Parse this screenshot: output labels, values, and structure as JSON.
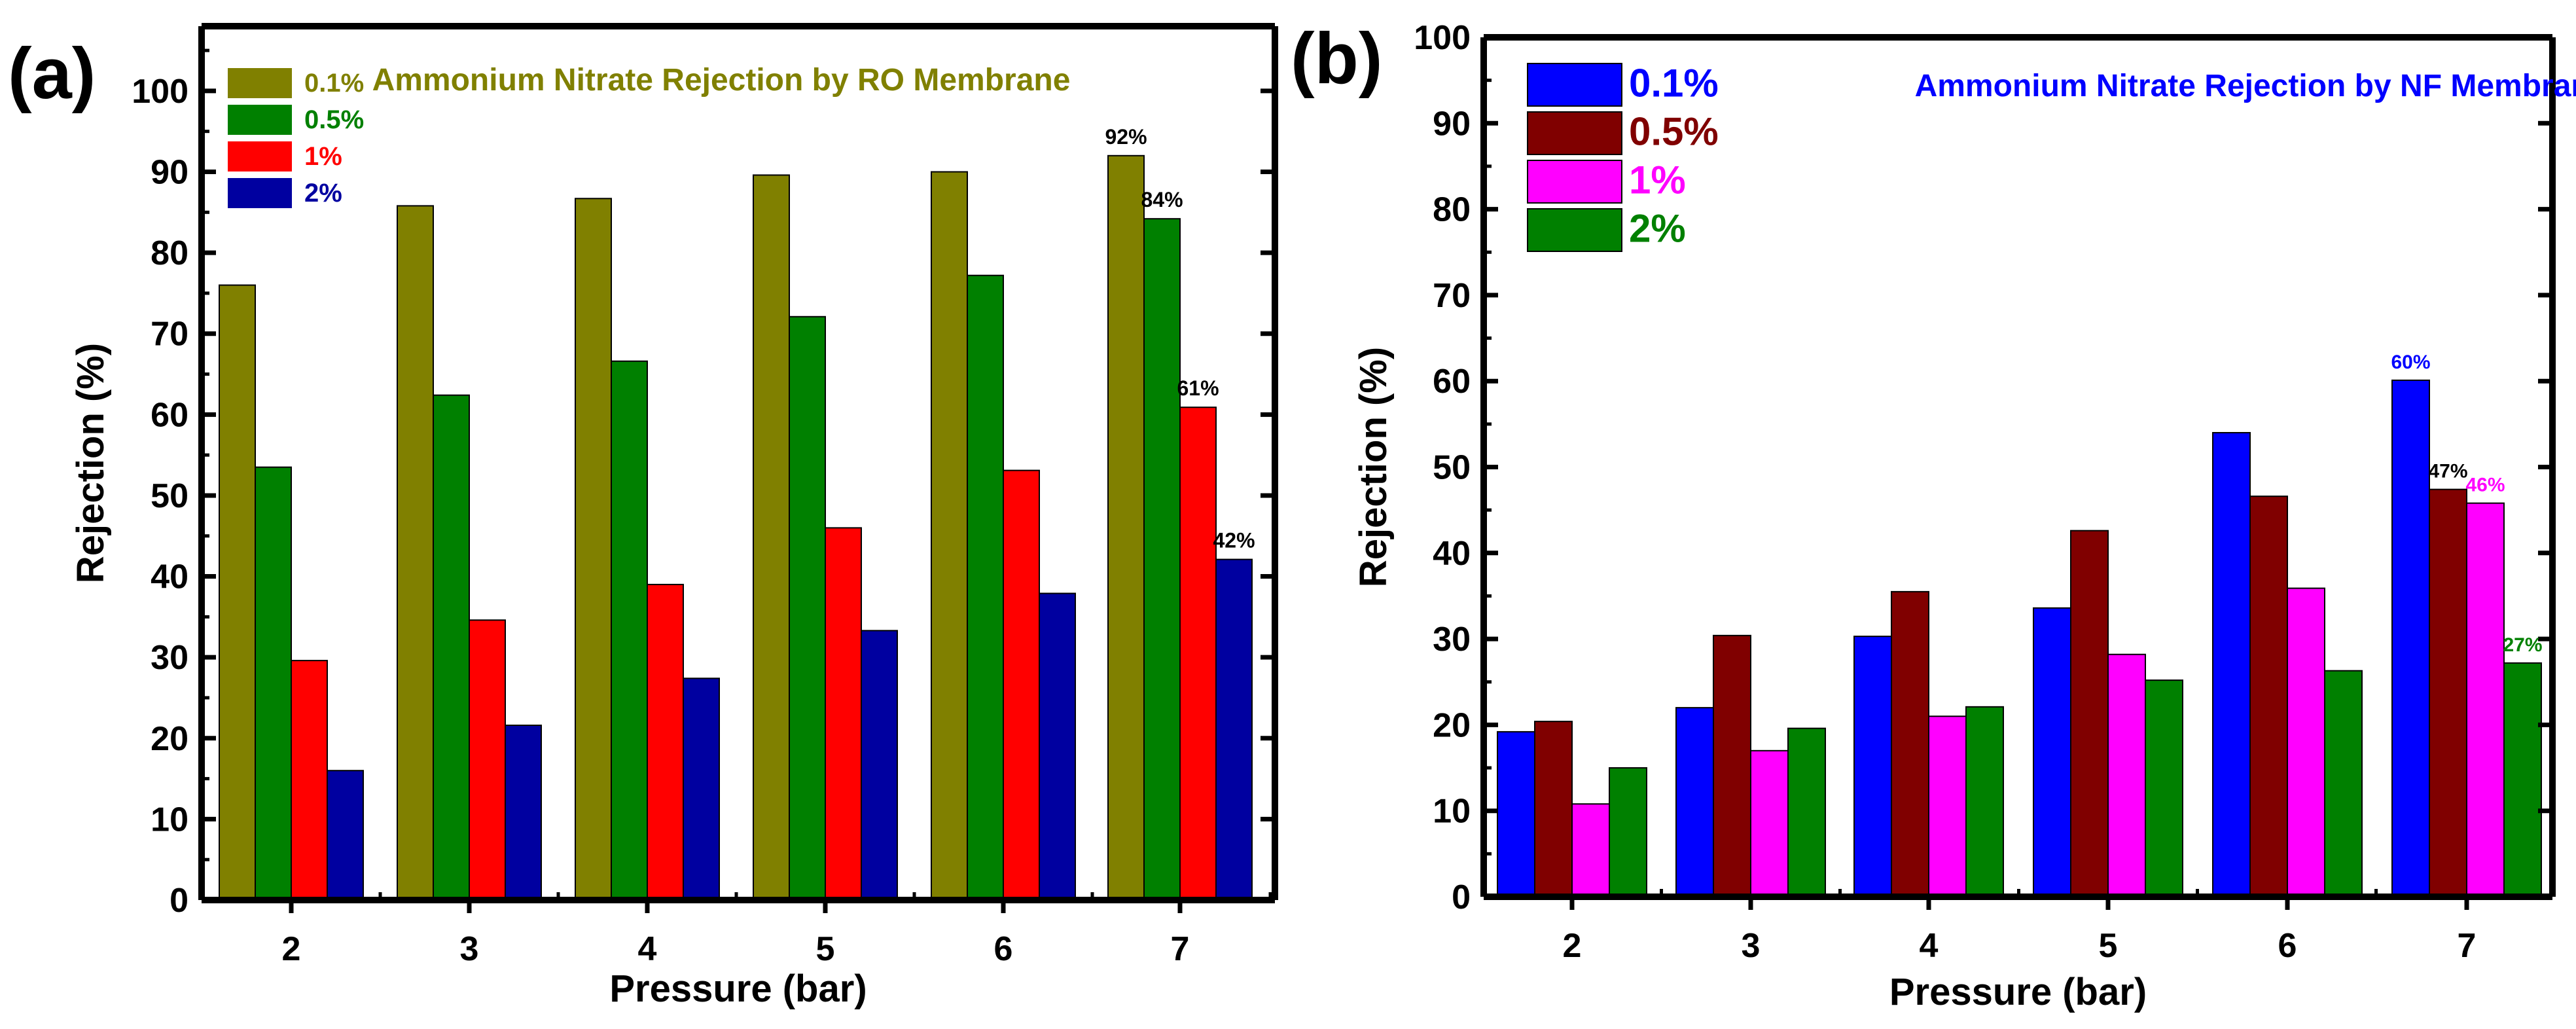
{
  "chart_data": [
    {
      "panel_label": "(a)",
      "type": "bar",
      "title": "Ammonium Nitrate Rejection by RO Membrane",
      "title_color": "#808000",
      "xlabel": "Pressure (bar)",
      "ylabel": "Rejection (%)",
      "categories": [
        "2",
        "3",
        "4",
        "5",
        "6",
        "7"
      ],
      "ylim": [
        0,
        108
      ],
      "yticks": [
        0,
        10,
        20,
        30,
        40,
        50,
        60,
        70,
        80,
        90,
        100
      ],
      "grid": false,
      "legend_position": "top-left",
      "series": [
        {
          "name": "0.1%",
          "color": "#808000",
          "values": [
            76,
            85.8,
            86.7,
            89.6,
            90,
            92
          ]
        },
        {
          "name": "0.5%",
          "color": "#008000",
          "values": [
            53.5,
            62.4,
            66.6,
            72.1,
            77.2,
            84.2
          ]
        },
        {
          "name": "1%",
          "color": "#ff0000",
          "values": [
            29.6,
            34.6,
            39,
            46,
            53.1,
            60.9
          ]
        },
        {
          "name": "2%",
          "color": "#0000a0",
          "values": [
            16,
            21.6,
            27.4,
            33.3,
            37.9,
            42.1
          ]
        }
      ],
      "annotations": [
        {
          "text": "92%",
          "category": "7",
          "series": "0.1%",
          "color": "#000000"
        },
        {
          "text": "84%",
          "category": "7",
          "series": "0.5%",
          "color": "#000000"
        },
        {
          "text": "61%",
          "category": "7",
          "series": "1%",
          "color": "#000000"
        },
        {
          "text": "42%",
          "category": "7",
          "series": "2%",
          "color": "#000000"
        }
      ]
    },
    {
      "panel_label": "(b)",
      "type": "bar",
      "title": "Ammonium Nitrate Rejection by NF Membrane",
      "title_color": "#0000ff",
      "xlabel": "Pressure (bar)",
      "ylabel": "Rejection (%)",
      "categories": [
        "2",
        "3",
        "4",
        "5",
        "6",
        "7"
      ],
      "ylim": [
        0,
        100
      ],
      "yticks": [
        0,
        10,
        20,
        30,
        40,
        50,
        60,
        70,
        80,
        90,
        100
      ],
      "grid": false,
      "legend_position": "top-left",
      "series": [
        {
          "name": "0.1%",
          "color": "#0000ff",
          "values": [
            19.2,
            22,
            30.3,
            33.6,
            54,
            60.1
          ]
        },
        {
          "name": "0.5%",
          "color": "#800000",
          "values": [
            20.4,
            30.4,
            35.5,
            42.6,
            46.6,
            47.4
          ]
        },
        {
          "name": "1%",
          "color": "#ff00ff",
          "values": [
            10.8,
            17,
            21,
            28.2,
            35.9,
            45.8
          ]
        },
        {
          "name": "2%",
          "color": "#008000",
          "values": [
            15,
            19.6,
            22.1,
            25.2,
            26.3,
            27.2
          ]
        }
      ],
      "annotations": [
        {
          "text": "60%",
          "category": "7",
          "series": "0.1%",
          "color": "#0000ff"
        },
        {
          "text": "47%",
          "category": "7",
          "series": "0.5%",
          "color": "#000000"
        },
        {
          "text": "46%",
          "category": "7",
          "series": "1%",
          "color": "#ff00ff"
        },
        {
          "text": "27%",
          "category": "7",
          "series": "2%",
          "color": "#008000"
        }
      ]
    }
  ]
}
